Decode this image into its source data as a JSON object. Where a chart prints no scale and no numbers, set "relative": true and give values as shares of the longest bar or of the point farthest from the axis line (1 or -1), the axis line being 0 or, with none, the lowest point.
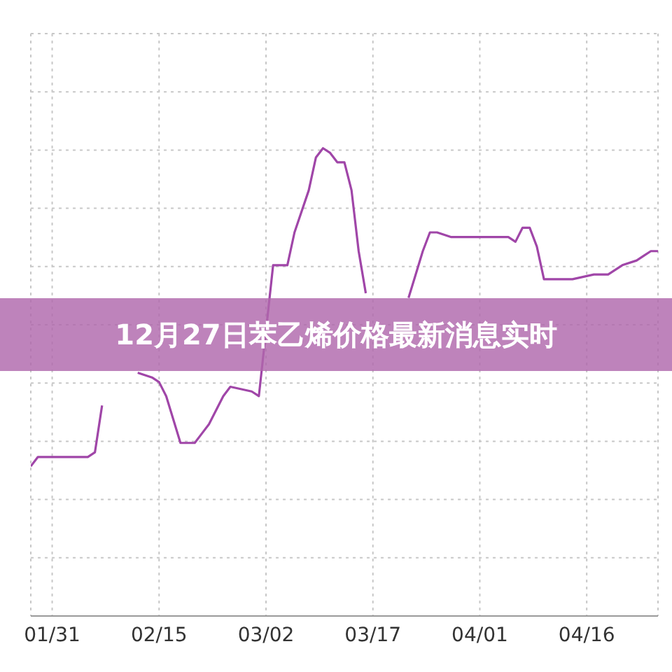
{
  "chart_data": {
    "type": "line",
    "title": "12月27日苯乙烯价格最新消息实时",
    "relative": true,
    "grid": true,
    "color": "#a046a8",
    "x": [
      "--01-28",
      "--01-29",
      "--01-31",
      "--02-05",
      "--02-06",
      "--02-07",
      "--02-08",
      "--02-09",
      "--02-11",
      "--02-12",
      "--02-14",
      "--02-15",
      "--02-16",
      "--02-18",
      "--02-19",
      "--02-20",
      "--02-21",
      "--02-22",
      "--02-24",
      "--02-25",
      "--02-28",
      "--03-01",
      "--03-03",
      "--03-05",
      "--03-06",
      "--03-08",
      "--03-09",
      "--03-10",
      "--03-11",
      "--03-12",
      "--03-13",
      "--03-14",
      "--03-15",
      "--03-16",
      "--03-17",
      "--03-18",
      "--03-19",
      "--03-20",
      "--03-21",
      "--03-22",
      "--03-23",
      "--03-24",
      "--03-25",
      "--03-26",
      "--03-28",
      "--03-30",
      "--04-03",
      "--04-05",
      "--04-06",
      "--04-07",
      "--04-08",
      "--04-09",
      "--04-10",
      "--04-12",
      "--04-14",
      "--04-17",
      "--04-19",
      "--04-21",
      "--04-23",
      "--04-24",
      "--04-25",
      "--04-26"
    ],
    "values": [
      0.32,
      0.34,
      0.34,
      0.34,
      0.35,
      0.45,
      null,
      null,
      null,
      0.52,
      0.51,
      0.5,
      0.47,
      0.37,
      0.37,
      0.37,
      0.39,
      0.41,
      0.47,
      0.49,
      0.48,
      0.47,
      0.75,
      0.75,
      0.82,
      0.91,
      0.98,
      1,
      0.99,
      0.97,
      0.97,
      0.91,
      0.78,
      0.69,
      null,
      null,
      null,
      null,
      null,
      0.68,
      0.73,
      0.78,
      0.82,
      0.82,
      0.81,
      0.81,
      0.81,
      0.81,
      0.8,
      0.83,
      0.83,
      0.79,
      0.72,
      0.72,
      0.72,
      0.73,
      0.73,
      0.75,
      0.76,
      0.77,
      0.78,
      0.78
    ],
    "xlim": [
      "--01-28",
      "--04-26"
    ],
    "xticks": [
      {
        "value": "--01-31",
        "label": "01/31"
      },
      {
        "value": "--02-15",
        "label": "02/15"
      },
      {
        "value": "--03-02",
        "label": "03/02"
      },
      {
        "value": "--03-17",
        "label": "03/17"
      },
      {
        "value": "--04-01",
        "label": "04/01"
      },
      {
        "value": "--04-16",
        "label": "04/16"
      }
    ]
  }
}
